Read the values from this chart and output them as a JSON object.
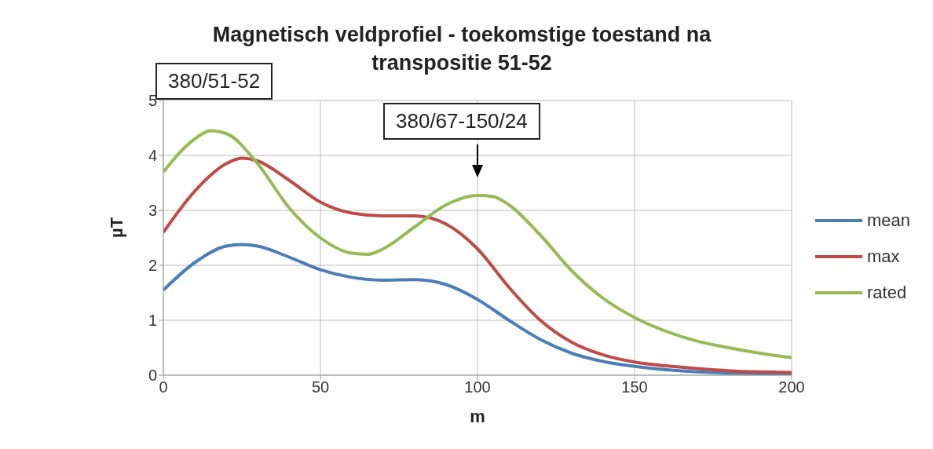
{
  "chart_data": {
    "type": "line",
    "title": "Magnetisch veldprofiel - toekomstige toestand na transpositie 51-52",
    "xlabel": "m",
    "ylabel": "µT",
    "x": [
      0,
      10,
      20,
      25,
      30,
      40,
      50,
      60,
      70,
      80,
      90,
      100,
      110,
      120,
      130,
      140,
      150,
      160,
      170,
      180,
      190,
      200
    ],
    "series": [
      {
        "name": "mean",
        "color": "#4a7ebb",
        "values": [
          1.55,
          2.05,
          2.35,
          2.38,
          2.35,
          2.15,
          1.92,
          1.78,
          1.73,
          1.74,
          1.65,
          1.38,
          1.0,
          0.65,
          0.4,
          0.25,
          0.16,
          0.1,
          0.06,
          0.04,
          0.03,
          0.03
        ]
      },
      {
        "name": "max",
        "color": "#be4b48",
        "values": [
          2.6,
          3.35,
          3.85,
          3.95,
          3.9,
          3.55,
          3.15,
          2.95,
          2.9,
          2.9,
          2.75,
          2.3,
          1.6,
          1.0,
          0.6,
          0.37,
          0.24,
          0.17,
          0.12,
          0.08,
          0.06,
          0.05
        ]
      },
      {
        "name": "rated",
        "color": "#98b954",
        "x": [
          0,
          10,
          15,
          20,
          30,
          40,
          50,
          60,
          65,
          70,
          80,
          90,
          100,
          105,
          110,
          120,
          130,
          140,
          150,
          160,
          170,
          180,
          190,
          200
        ],
        "values": [
          3.7,
          4.3,
          4.45,
          4.4,
          3.85,
          3.05,
          2.5,
          2.22,
          2.2,
          2.3,
          2.7,
          3.1,
          3.27,
          3.25,
          3.1,
          2.55,
          1.9,
          1.4,
          1.05,
          0.8,
          0.62,
          0.5,
          0.4,
          0.32
        ]
      }
    ],
    "xlim": [
      0,
      200
    ],
    "xticks": [
      0,
      50,
      100,
      150,
      200
    ],
    "ylim": [
      0,
      5
    ],
    "yticks": [
      0,
      1,
      2,
      3,
      4,
      5
    ],
    "grid": true,
    "legend": "right",
    "annotations": [
      "380/51-52",
      "380/67-150/24"
    ]
  }
}
